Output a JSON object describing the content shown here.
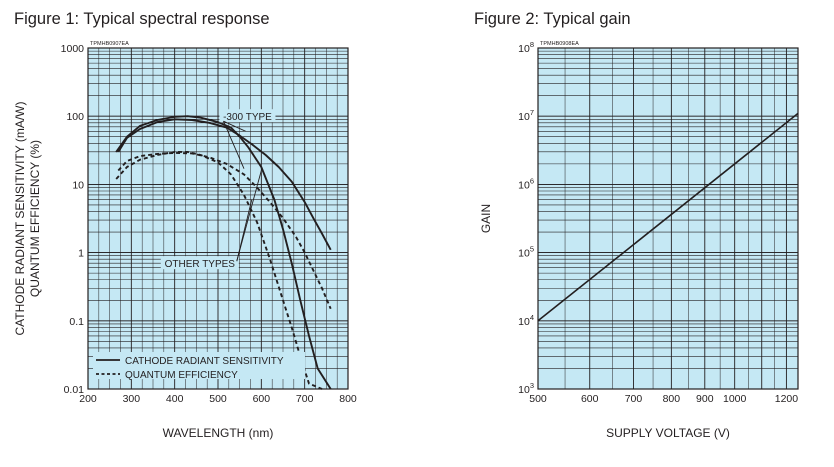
{
  "chart_data": [
    {
      "type": "line",
      "figure_title": "Figure 1: Typical spectral response",
      "tag": "TPMHB0907EA",
      "xlabel": "WAVELENGTH (nm)",
      "ylabel_line1": "CATHODE RADIANT SENSITIVITY (mA/W)",
      "ylabel_line2": "QUANTUM EFFICIENCY (%)",
      "xscale": "linear",
      "yscale": "log",
      "xlim": [
        200,
        800
      ],
      "ylim": [
        0.01,
        1000
      ],
      "xticks": [
        {
          "value": 200,
          "label": "200"
        },
        {
          "value": 300,
          "label": "300"
        },
        {
          "value": 400,
          "label": "400"
        },
        {
          "value": 500,
          "label": "500"
        },
        {
          "value": 600,
          "label": "600"
        },
        {
          "value": 700,
          "label": "700"
        },
        {
          "value": 800,
          "label": "800"
        }
      ],
      "yticks": [
        {
          "value": 0.01,
          "label": "0.01"
        },
        {
          "value": 0.1,
          "label": "0.1"
        },
        {
          "value": 1,
          "label": "1"
        },
        {
          "value": 10,
          "label": "10"
        },
        {
          "value": 100,
          "label": "100"
        },
        {
          "value": 1000,
          "label": "1000"
        }
      ],
      "grid": true,
      "background": "#c5e8f4",
      "line_color": "#231f20",
      "legend": {
        "position": "bottom-left",
        "items": [
          {
            "label": "CATHODE RADIANT SENSITIVITY",
            "style": "solid"
          },
          {
            "label": "QUANTUM EFFICIENCY",
            "style": "dashed"
          }
        ]
      },
      "annotations": [
        {
          "label": "-300 TYPE",
          "x": 568,
          "y": 100
        },
        {
          "label": "OTHER TYPES",
          "x": 458,
          "y": 0.7
        }
      ],
      "series": [
        {
          "name": "-300 TYPE radiant sensitivity",
          "style": "solid",
          "x": [
            270,
            290,
            320,
            360,
            400,
            440,
            480,
            520,
            550,
            580,
            610,
            640,
            670,
            700,
            720,
            740,
            760
          ],
          "y": [
            30,
            48,
            65,
            82,
            90,
            88,
            80,
            68,
            52,
            38,
            27,
            18,
            11,
            5.5,
            3.2,
            1.9,
            1.1
          ]
        },
        {
          "name": "Other types radiant sensitivity",
          "style": "solid",
          "x": [
            265,
            290,
            320,
            360,
            400,
            430,
            460,
            500,
            530,
            550,
            570,
            600,
            630,
            650,
            670,
            690,
            710,
            730,
            760
          ],
          "y": [
            30,
            50,
            72,
            88,
            98,
            100,
            95,
            82,
            68,
            50,
            35,
            18,
            6,
            2.2,
            0.7,
            0.2,
            0.06,
            0.02,
            0.01
          ]
        },
        {
          "name": "-300 TYPE quantum efficiency",
          "style": "dashed",
          "x": [
            270,
            290,
            320,
            360,
            400,
            440,
            480,
            520,
            560,
            590,
            620,
            650,
            680,
            700,
            720,
            740,
            760
          ],
          "y": [
            16,
            22,
            26,
            28,
            29,
            28.5,
            25,
            20,
            14,
            9,
            5.5,
            3.2,
            1.7,
            1.0,
            0.55,
            0.3,
            0.15
          ]
        },
        {
          "name": "Other types quantum efficiency",
          "style": "dashed",
          "x": [
            265,
            290,
            320,
            360,
            400,
            430,
            460,
            500,
            530,
            560,
            590,
            620,
            650,
            670,
            690,
            710,
            740
          ],
          "y": [
            12,
            18,
            23,
            27,
            30,
            30,
            27,
            21,
            14,
            7,
            2.8,
            0.8,
            0.2,
            0.08,
            0.03,
            0.012,
            0.01
          ]
        }
      ]
    },
    {
      "type": "line",
      "figure_title": "Figure 2: Typical gain",
      "tag": "TPMHB0908EA",
      "xlabel": "SUPPLY VOLTAGE (V)",
      "ylabel": "GAIN",
      "xscale": "log",
      "yscale": "log",
      "xlim": [
        500,
        1250
      ],
      "ylim": [
        1000,
        100000000
      ],
      "xticks": [
        {
          "value": 500,
          "label": "500"
        },
        {
          "value": 600,
          "label": "600"
        },
        {
          "value": 700,
          "label": "700"
        },
        {
          "value": 800,
          "label": "800"
        },
        {
          "value": 900,
          "label": "900"
        },
        {
          "value": 1000,
          "label": "1000"
        },
        {
          "value": 1200,
          "label": "1200"
        }
      ],
      "yticks": [
        {
          "value": 1000,
          "base": "10",
          "exp": "3"
        },
        {
          "value": 10000,
          "base": "10",
          "exp": "4"
        },
        {
          "value": 100000,
          "base": "10",
          "exp": "5"
        },
        {
          "value": 1000000,
          "base": "10",
          "exp": "6"
        },
        {
          "value": 10000000,
          "base": "10",
          "exp": "7"
        },
        {
          "value": 100000000,
          "base": "10",
          "exp": "8"
        }
      ],
      "grid": true,
      "background": "#c5e8f4",
      "line_color": "#231f20",
      "series": [
        {
          "name": "Gain",
          "style": "solid",
          "x": [
            500,
            1250
          ],
          "y": [
            10000,
            11000000
          ]
        }
      ]
    }
  ]
}
